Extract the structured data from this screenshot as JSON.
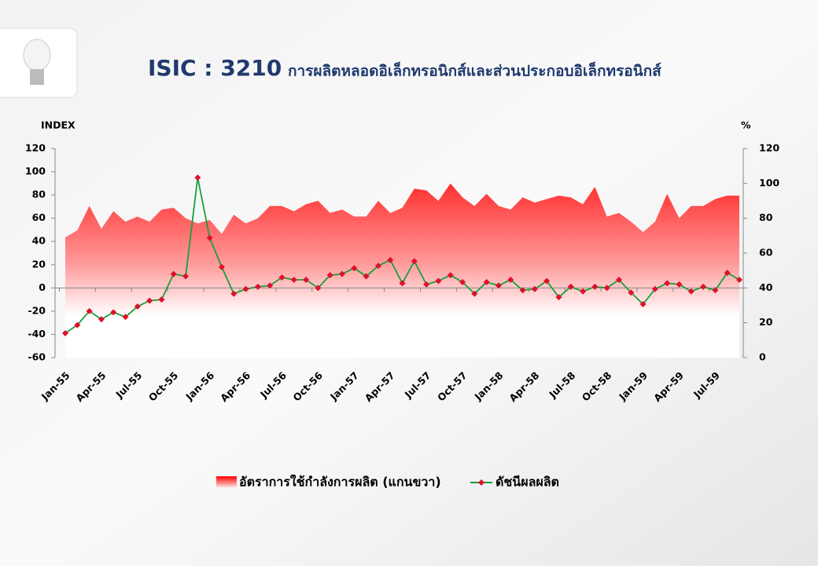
{
  "chart_data": {
    "type": "combo",
    "title": "ISIC : 3210",
    "subtitle": "การผลิตหลอดอิเล็กทรอนิกส์และส่วนประกอบอิเล็กทรอนิกส์",
    "y_label": "INDEX",
    "y2_label": "%",
    "categories": [
      "Jan-55",
      null,
      null,
      "Apr-55",
      null,
      null,
      "Jul-55",
      null,
      null,
      "Oct-55",
      null,
      null,
      "Jan-56",
      null,
      null,
      "Apr-56",
      null,
      null,
      "Jul-56",
      null,
      null,
      "Oct-56",
      null,
      null,
      "Jan-57",
      null,
      null,
      "Apr-57",
      null,
      null,
      "Jul-57",
      null,
      null,
      "Oct-57",
      null,
      null,
      "Jan-58",
      null,
      null,
      "Apr-58",
      null,
      null,
      "Jul-58",
      null,
      null,
      "Oct-58",
      null,
      null,
      "Jan-59",
      null,
      null,
      "Apr-59",
      null,
      null,
      "Jul-59",
      null,
      null
    ],
    "series": [
      {
        "name": "อัตราการใช้กำลังการผลิต (แกนขวา)",
        "type": "area",
        "axis": "y2",
        "color": "#ff0000",
        "values": [
          69,
          73,
          87,
          74,
          84,
          78,
          81,
          78,
          85,
          86,
          80,
          77,
          79,
          71,
          82,
          77,
          80,
          87,
          87,
          84,
          88,
          90,
          83,
          85,
          81,
          81,
          90,
          83,
          86,
          97,
          96,
          90,
          100,
          92,
          87,
          94,
          87,
          85,
          92,
          89,
          91,
          93,
          92,
          88,
          98,
          81,
          83,
          78,
          72,
          78,
          94,
          80,
          87,
          87,
          91,
          93,
          93
        ]
      },
      {
        "name": "ดัชนีผลผลิต",
        "type": "line",
        "color": "#1a9e3a",
        "marker_color": "#e0102a",
        "values": [
          -39,
          -32,
          -20,
          -27,
          -21,
          -25,
          -16,
          -11,
          -10,
          12,
          10,
          95,
          43,
          18,
          -5,
          -1,
          1,
          2,
          9,
          7,
          7,
          0,
          11,
          12,
          17,
          10,
          19,
          24,
          4,
          23,
          3,
          6,
          11,
          5,
          -5,
          5,
          2,
          7,
          -2,
          -1,
          6,
          -8,
          1,
          -3,
          1,
          0,
          7,
          -4,
          -14,
          -1,
          4,
          3,
          -3,
          1,
          -2,
          13,
          7
        ]
      }
    ],
    "ylim": [
      -60,
      120
    ],
    "yticks": [
      -60,
      -40,
      -20,
      0,
      20,
      40,
      60,
      80,
      100,
      120
    ],
    "y2lim": [
      0,
      120
    ],
    "y2ticks": [
      0,
      20,
      40,
      60,
      80,
      100,
      120
    ]
  }
}
